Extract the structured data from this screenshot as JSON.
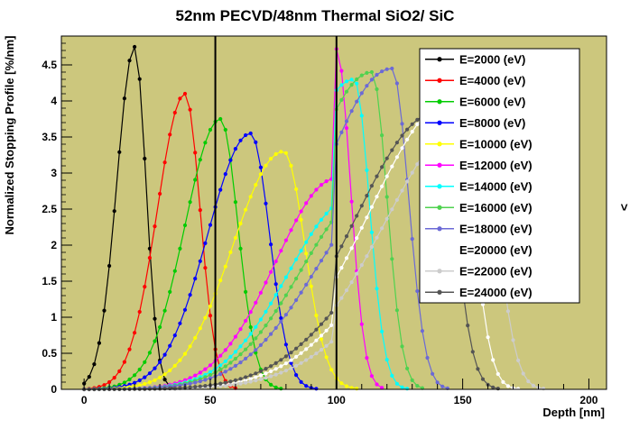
{
  "decor": {
    "caret": ">"
  },
  "chart_data": {
    "type": "line",
    "title": "52nm PECVD/48nm Thermal SiO2/ SiC",
    "xlabel": "Depth [nm]",
    "ylabel": "Normalized Stopping Profile [%/nm]",
    "xlim": [
      -9,
      207
    ],
    "ylim": [
      0,
      4.9
    ],
    "x_major_ticks": [
      0,
      50,
      100,
      150,
      200
    ],
    "x_minor_step": 10,
    "y_major_ticks": [
      0,
      0.5,
      1,
      1.5,
      2,
      2.5,
      3,
      3.5,
      4,
      4.5
    ],
    "y_minor_step": 0.1,
    "frame_fill": "#ccc77d",
    "frame_border": "#000000",
    "grid": false,
    "legend": {
      "position": "top-right",
      "bg": "#ffffff",
      "border": "#000000"
    },
    "vertical_lines": [
      {
        "x": 52,
        "meaning": "PECVD SiO2 / thermal SiO2 boundary"
      },
      {
        "x": 100,
        "meaning": "SiO2 / SiC interface"
      }
    ],
    "curve_model": "asymmetric gaussian stopping profile; y = peak_y*exp(-0.5*((x-peak_x)/sigma)^2), sigma_left below peak, sigma_right above; values before suppress_before_x multiplied by suppress_factor (density step at SiO2/SiC interface)",
    "sample_step_nm": 2,
    "series": [
      {
        "label": "E=2000 (eV)",
        "color": "#000000",
        "peak_x": 20,
        "peak_y": 4.75,
        "sigma_left": 7,
        "sigma_right": 4.5
      },
      {
        "label": "E=4000 (eV)",
        "color": "#ff0000",
        "peak_x": 40,
        "peak_y": 4.1,
        "sigma_left": 11,
        "sigma_right": 6
      },
      {
        "label": "E=6000 (eV)",
        "color": "#00cc00",
        "peak_x": 54,
        "peak_y": 3.75,
        "sigma_left": 14,
        "sigma_right": 7
      },
      {
        "label": "E=8000 (eV)",
        "color": "#0000ff",
        "peak_x": 66,
        "peak_y": 3.55,
        "sigma_left": 17,
        "sigma_right": 7.5
      },
      {
        "label": "E=10000 (eV)",
        "color": "#ffff00",
        "peak_x": 79,
        "peak_y": 3.3,
        "sigma_left": 20,
        "sigma_right": 8.5
      },
      {
        "label": "E=12000 (eV)",
        "color": "#ff00ff",
        "peak_x": 100,
        "peak_y": 4.72,
        "sigma_left": 24,
        "sigma_right": 5.5,
        "suppress_before_x": 100,
        "suppress_factor": 0.62
      },
      {
        "label": "E=14000 (eV)",
        "color": "#00ffff",
        "peak_x": 107,
        "peak_y": 4.3,
        "sigma_left": 26,
        "sigma_right": 6,
        "suppress_before_x": 100,
        "suppress_factor": 0.62
      },
      {
        "label": "E=16000 (eV)",
        "color": "#4fd24f",
        "peak_x": 114,
        "peak_y": 4.4,
        "sigma_left": 28,
        "sigma_right": 6,
        "suppress_before_x": 100,
        "suppress_factor": 0.62
      },
      {
        "label": "E=18000 (eV)",
        "color": "#6b69d6",
        "peak_x": 122,
        "peak_y": 4.45,
        "sigma_left": 30,
        "sigma_right": 6.5,
        "suppress_before_x": 100,
        "suppress_factor": 0.62
      },
      {
        "label": "E=20000 (eV)",
        "color": "#ffffff",
        "peak_x": 147,
        "peak_y": 4.05,
        "sigma_left": 34,
        "sigma_right": 7,
        "suppress_before_x": 100,
        "suppress_factor": 0.62
      },
      {
        "label": "E=22000 (eV)",
        "color": "#cccccc",
        "peak_x": 156,
        "peak_y": 3.9,
        "sigma_left": 36,
        "sigma_right": 7.5,
        "suppress_before_x": 100,
        "suppress_factor": 0.62
      },
      {
        "label": "E=24000 (eV)",
        "color": "#545454",
        "peak_x": 140,
        "peak_y": 3.85,
        "sigma_left": 33,
        "sigma_right": 7,
        "suppress_before_x": 100,
        "suppress_factor": 0.62
      }
    ]
  }
}
